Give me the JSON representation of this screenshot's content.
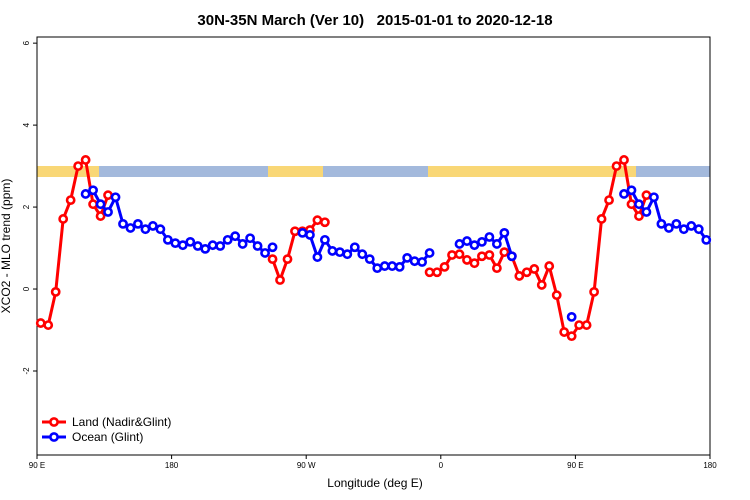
{
  "chart_data": {
    "type": "line",
    "title": "30N-35N March (Ver 10)   2015-01-01 to 2020-12-18",
    "x_label": "Longitude (deg E)",
    "y_label": "XCO2 - MLO trend (ppm)",
    "xlim": [
      90,
      540
    ],
    "ylim": [
      -4.05,
      6.15
    ],
    "xticks": [
      {
        "value": 90,
        "label": "90 E"
      },
      180,
      {
        "value": 270,
        "label": "90 W"
      },
      {
        "value": 360,
        "label": "0"
      },
      {
        "value": 450,
        "label": "90 E"
      },
      {
        "value": 540,
        "label": "180"
      }
    ],
    "yticks": [
      -2,
      0,
      2,
      4,
      6
    ],
    "legend": "bottom-left",
    "x": [
      92.5,
      97.5,
      102.5,
      107.5,
      112.5,
      117.5,
      122.5,
      127.5,
      132.5,
      137.5,
      142.5,
      147.5,
      152.5,
      157.5,
      162.5,
      167.5,
      172.5,
      177.5,
      182.5,
      187.5,
      192.5,
      197.5,
      202.5,
      207.5,
      212.5,
      217.5,
      222.5,
      227.5,
      232.5,
      237.5,
      242.5,
      247.5,
      252.5,
      257.5,
      262.5,
      267.5,
      272.5,
      277.5,
      282.5,
      287.5,
      292.5,
      297.5,
      302.5,
      307.5,
      312.5,
      317.5,
      322.5,
      327.5,
      332.5,
      337.5,
      342.5,
      347.5,
      352.5,
      357.5,
      362.5,
      367.5,
      372.5,
      377.5,
      382.5,
      387.5,
      392.5,
      397.5,
      402.5,
      407.5,
      412.5,
      417.5,
      422.5,
      427.5,
      432.5,
      437.5,
      442.5,
      447.5,
      452.5,
      457.5,
      462.5,
      467.5,
      472.5,
      477.5,
      482.5,
      487.5,
      492.5,
      497.5,
      502.5,
      507.5,
      512.5,
      517.5,
      522.5,
      527.5,
      532.5,
      537.5
    ],
    "series": [
      {
        "name": "Land (Nadir&Glint)",
        "color": "#ff0000",
        "values": [
          -0.83,
          -0.88,
          -0.07,
          1.71,
          2.17,
          3.0,
          3.15,
          2.07,
          1.78,
          2.29,
          null,
          null,
          null,
          null,
          null,
          null,
          null,
          null,
          null,
          null,
          null,
          null,
          null,
          null,
          null,
          null,
          null,
          null,
          null,
          null,
          null,
          0.73,
          0.22,
          0.73,
          1.41,
          1.41,
          1.44,
          1.68,
          1.63,
          null,
          null,
          null,
          null,
          null,
          null,
          null,
          null,
          null,
          null,
          null,
          null,
          null,
          0.41,
          0.41,
          0.54,
          0.83,
          0.85,
          0.71,
          0.63,
          0.8,
          0.83,
          0.51,
          0.9,
          0.8,
          0.32,
          0.41,
          0.49,
          0.1,
          0.56,
          -0.15,
          -1.05,
          -1.15,
          -0.88,
          -0.88,
          -0.07,
          1.71,
          2.17,
          3.0,
          3.15,
          2.07,
          1.78,
          2.29,
          null,
          null,
          null,
          null,
          null,
          null,
          null,
          null
        ]
      },
      {
        "name": "Ocean (Glint)",
        "color": "#0000ff",
        "values": [
          null,
          null,
          null,
          null,
          null,
          null,
          2.32,
          2.41,
          2.07,
          1.88,
          2.24,
          1.59,
          1.49,
          1.59,
          1.46,
          1.54,
          1.46,
          1.2,
          1.12,
          1.07,
          1.15,
          1.05,
          0.98,
          1.07,
          1.05,
          1.2,
          1.29,
          1.1,
          1.24,
          1.05,
          0.88,
          1.02,
          null,
          null,
          null,
          1.37,
          1.32,
          0.78,
          1.2,
          0.93,
          0.9,
          0.85,
          1.02,
          0.85,
          0.73,
          0.51,
          0.56,
          0.56,
          0.54,
          0.76,
          0.68,
          0.66,
          0.88,
          null,
          null,
          null,
          1.1,
          1.17,
          1.07,
          1.15,
          1.27,
          1.1,
          1.37,
          0.8,
          null,
          null,
          null,
          null,
          null,
          null,
          null,
          -0.68,
          null,
          null,
          null,
          null,
          null,
          null,
          2.32,
          2.41,
          2.07,
          1.88,
          2.24,
          1.59,
          1.49,
          1.59,
          1.46,
          1.54,
          1.46,
          1.2
        ]
      }
    ]
  }
}
